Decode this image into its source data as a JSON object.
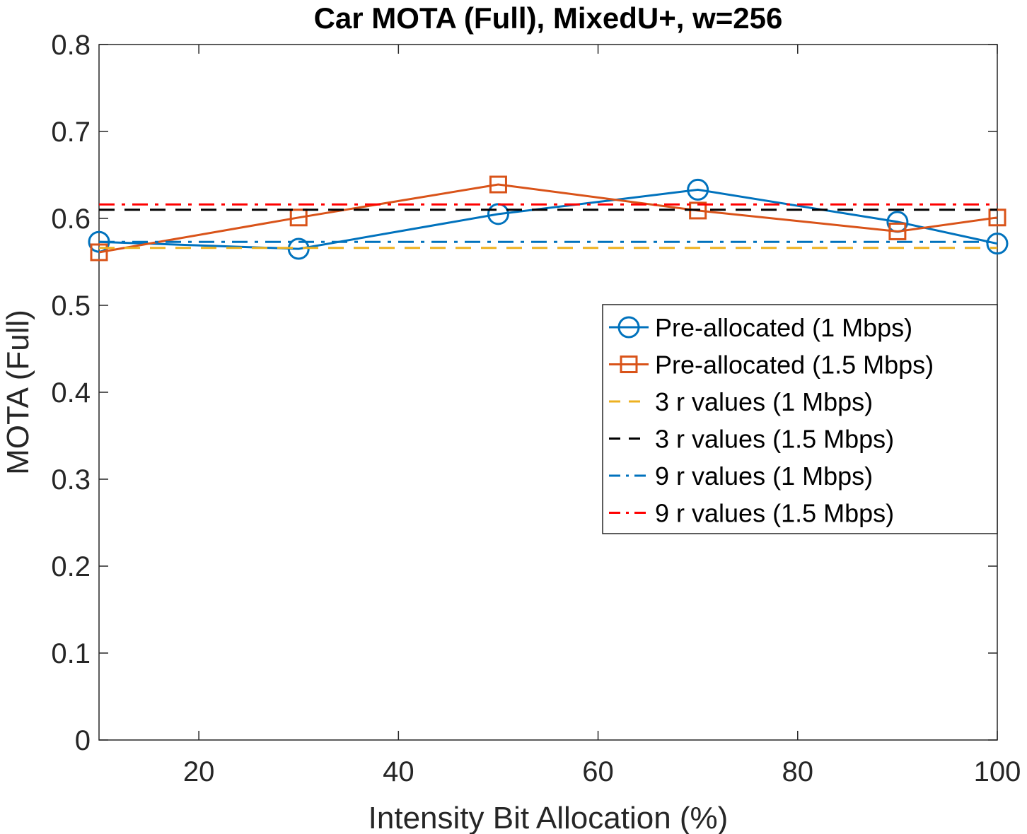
{
  "chart_data": {
    "type": "line",
    "title": "Car MOTA (Full), MixedU+, w=256",
    "xlabel": "Intensity Bit Allocation (%)",
    "ylabel": "MOTA (Full)",
    "xlim": [
      10,
      100
    ],
    "ylim": [
      0,
      0.8
    ],
    "xticks": [
      20,
      40,
      60,
      80,
      100
    ],
    "xtick_labels": [
      "20",
      "40",
      "60",
      "80",
      "100"
    ],
    "yticks": [
      0,
      0.1,
      0.2,
      0.3,
      0.4,
      0.5,
      0.6,
      0.7,
      0.8
    ],
    "ytick_labels": [
      "0",
      "0.1",
      "0.2",
      "0.3",
      "0.4",
      "0.5",
      "0.6",
      "0.7",
      "0.8"
    ],
    "grid": false,
    "legend_position": "right",
    "series": [
      {
        "name": "Pre-allocated (1 Mbps)",
        "color": "#0072BD",
        "style": "solid",
        "marker": "circle",
        "x": [
          10,
          30,
          50,
          70,
          90,
          100
        ],
        "values": [
          0.573,
          0.565,
          0.605,
          0.633,
          0.596,
          0.571
        ]
      },
      {
        "name": "Pre-allocated (1.5 Mbps)",
        "color": "#D95319",
        "style": "solid",
        "marker": "square",
        "x": [
          10,
          30,
          50,
          70,
          90,
          100
        ],
        "values": [
          0.561,
          0.601,
          0.639,
          0.609,
          0.585,
          0.601
        ]
      },
      {
        "name": "3 r values (1 Mbps)",
        "color": "#EDB120",
        "style": "dashed",
        "marker": "none",
        "x": [
          10,
          100
        ],
        "values": [
          0.566,
          0.566
        ]
      },
      {
        "name": "3 r values (1.5 Mbps)",
        "color": "#000000",
        "style": "dashed",
        "marker": "none",
        "x": [
          10,
          100
        ],
        "values": [
          0.61,
          0.61
        ]
      },
      {
        "name": "9 r values (1 Mbps)",
        "color": "#0072BD",
        "style": "dashdot",
        "marker": "none",
        "x": [
          10,
          100
        ],
        "values": [
          0.573,
          0.573
        ]
      },
      {
        "name": "9 r values (1.5 Mbps)",
        "color": "#FF0000",
        "style": "dashdot",
        "marker": "none",
        "x": [
          10,
          100
        ],
        "values": [
          0.616,
          0.616
        ]
      }
    ]
  }
}
